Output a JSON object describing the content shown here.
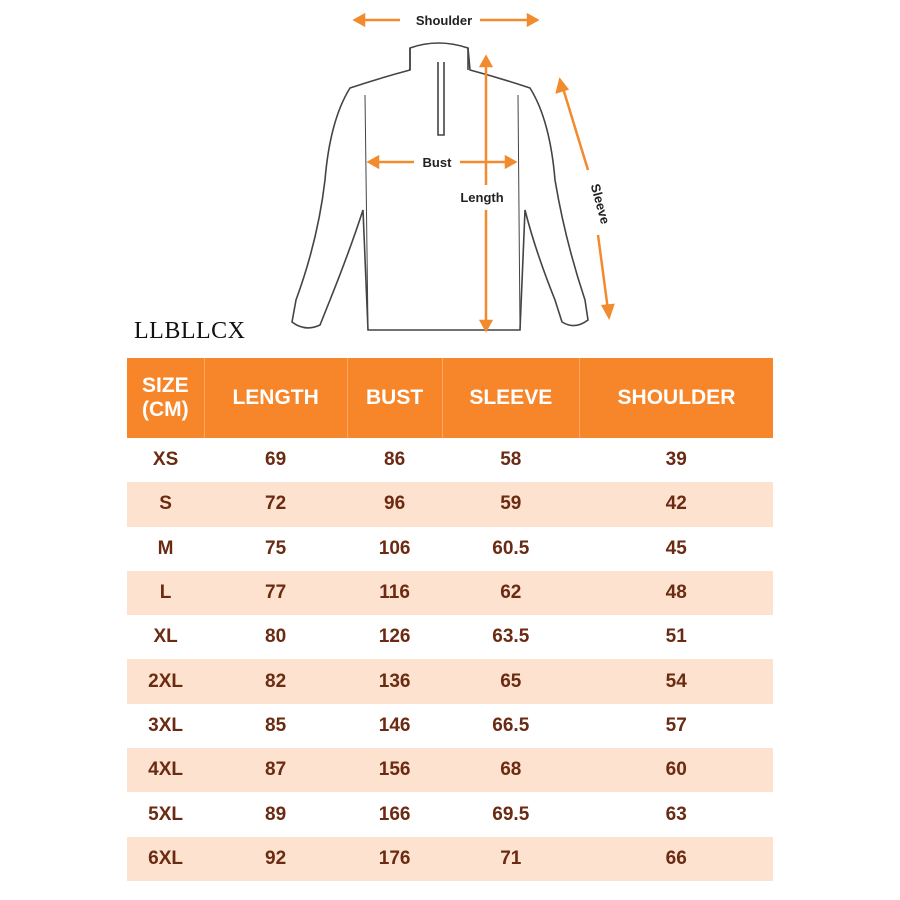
{
  "diagram": {
    "labels": {
      "shoulder": "Shoulder",
      "bust": "Bust",
      "length": "Length",
      "sleeve": "Sleeve"
    }
  },
  "brand": "LLBLLCX",
  "table": {
    "header": [
      "SIZE\n(CM)",
      "LENGTH",
      "BUST",
      "SLEEVE",
      "SHOULDER"
    ],
    "rows": [
      [
        "XS",
        69,
        86,
        58,
        39
      ],
      [
        "S",
        72,
        96,
        59,
        42
      ],
      [
        "M",
        75,
        106,
        60.5,
        45
      ],
      [
        "L",
        77,
        116,
        62,
        48
      ],
      [
        "XL",
        80,
        126,
        63.5,
        51
      ],
      [
        "2XL",
        82,
        136,
        65,
        54
      ],
      [
        "3XL",
        85,
        146,
        66.5,
        57
      ],
      [
        "4XL",
        87,
        156,
        68,
        60
      ],
      [
        "5XL",
        89,
        166,
        69.5,
        63
      ],
      [
        "6XL",
        92,
        176,
        71,
        66
      ]
    ]
  }
}
